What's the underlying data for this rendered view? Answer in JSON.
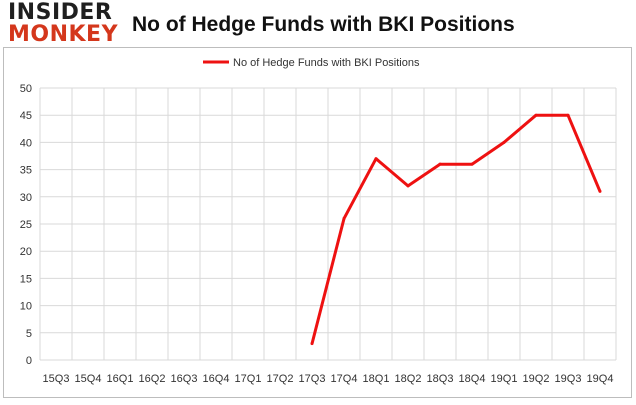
{
  "header": {
    "logo_line1": "INSIDER",
    "logo_line2": "MONKEY",
    "title": "No of Hedge Funds with BKI Positions"
  },
  "chart_data": {
    "type": "line",
    "title": "No of Hedge Funds with BKI Positions",
    "xlabel": "",
    "ylabel": "",
    "categories": [
      "15Q3",
      "15Q4",
      "16Q1",
      "16Q2",
      "16Q3",
      "16Q4",
      "17Q1",
      "17Q2",
      "17Q3",
      "17Q4",
      "18Q1",
      "18Q2",
      "18Q3",
      "18Q4",
      "19Q1",
      "19Q2",
      "19Q3",
      "19Q4"
    ],
    "series": [
      {
        "name": "No of Hedge Funds with BKI Positions",
        "color": "#ee1111",
        "values": [
          null,
          null,
          null,
          null,
          null,
          null,
          null,
          null,
          3,
          26,
          37,
          32,
          36,
          36,
          40,
          45,
          45,
          31
        ]
      }
    ],
    "ylim": [
      0,
      50
    ],
    "yticks": [
      0,
      5,
      10,
      15,
      20,
      25,
      30,
      35,
      40,
      45,
      50
    ],
    "grid": true,
    "legend_position": "top-center"
  }
}
